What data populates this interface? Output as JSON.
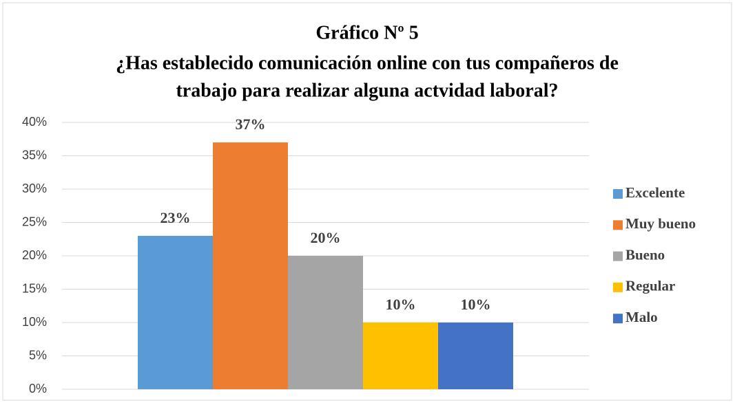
{
  "chart_data": {
    "type": "bar",
    "title": "Gráfico Nº 5",
    "subtitle": [
      "¿Has establecido comunicación online con tus compañeros de",
      "trabajo para realizar alguna actvidad laboral?"
    ],
    "categories": [
      null
    ],
    "series": [
      {
        "name": "Excelente",
        "color": "#5b9bd5",
        "values": [
          23
        ],
        "value_labels": [
          "23%"
        ]
      },
      {
        "name": "Muy bueno",
        "color": "#ed7d31",
        "values": [
          37
        ],
        "value_labels": [
          "37%"
        ]
      },
      {
        "name": "Bueno",
        "color": "#a5a5a5",
        "values": [
          20
        ],
        "value_labels": [
          "20%"
        ]
      },
      {
        "name": "Regular",
        "color": "#ffc000",
        "values": [
          10
        ],
        "value_labels": [
          "10%"
        ]
      },
      {
        "name": "Malo",
        "color": "#4472c4",
        "values": [
          10
        ],
        "value_labels": [
          "10%"
        ]
      }
    ],
    "ylim": [
      0,
      40
    ],
    "yticks": [
      {
        "value": 0,
        "label": "0%"
      },
      {
        "value": 5,
        "label": "5%"
      },
      {
        "value": 10,
        "label": "10%"
      },
      {
        "value": 15,
        "label": "15%"
      },
      {
        "value": 20,
        "label": "20%"
      },
      {
        "value": 25,
        "label": "25%"
      },
      {
        "value": 30,
        "label": "30%"
      },
      {
        "value": 35,
        "label": "35%"
      },
      {
        "value": 40,
        "label": "40%"
      }
    ],
    "grid": true,
    "legend": "right"
  }
}
